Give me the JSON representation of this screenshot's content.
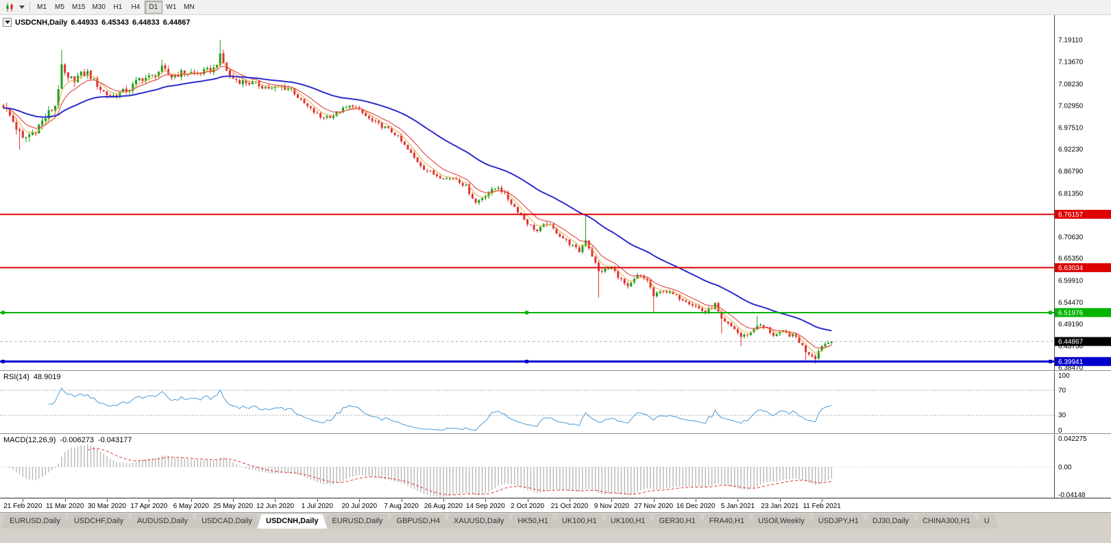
{
  "toolbar": {
    "chart_type_icon": "candlestick-chart-icon",
    "dropdown_icon": "chevron-down-icon",
    "timeframes": [
      "M1",
      "M5",
      "M15",
      "M30",
      "H1",
      "H4",
      "D1",
      "W1",
      "MN"
    ],
    "active_timeframe": "D1"
  },
  "chart_header": {
    "title": "USDCNH,Daily",
    "open": "6.44933",
    "high": "6.45343",
    "low": "6.44833",
    "close": "6.44867"
  },
  "rsi_panel": {
    "label": "RSI(14)",
    "value": "48.9019",
    "axis_labels": [
      [
        "100",
        100
      ],
      [
        "70",
        70
      ],
      [
        "30",
        30
      ],
      [
        "0",
        0
      ]
    ],
    "levels": [
      70,
      30
    ]
  },
  "macd_panel": {
    "label": "MACD(12,26,9)",
    "macd_value": "-0.006273",
    "signal_value": "-0.043177",
    "axis_top": "0.042275",
    "axis_zero": "0.00",
    "axis_bottom": "-0.04148"
  },
  "date_axis": {
    "first_candle_index": 6,
    "candle_step": 13,
    "labels": [
      "21 Feb 2020",
      "11 Mar 2020",
      "30 Mar 2020",
      "17 Apr 2020",
      "6 May 2020",
      "25 May 2020",
      "12 Jun 2020",
      "1 Jul 2020",
      "20 Jul 2020",
      "7 Aug 2020",
      "26 Aug 2020",
      "14 Sep 2020",
      "2 Oct 2020",
      "21 Oct 2020",
      "9 Nov 2020",
      "27 Nov 2020",
      "16 Dec 2020",
      "5 Jan 2021",
      "23 Jan 2021",
      "11 Feb 2021"
    ]
  },
  "bottom_tabs": {
    "active_index": 4,
    "tabs": [
      "EURUSD,Daily",
      "USDCHF,Daily",
      "AUDUSD,Daily",
      "USDCAD,Daily",
      "USDCNH,Daily",
      "EURUSD,Daily",
      "GBPUSD,H4",
      "XAUUSD,Daily",
      "HK50,H1",
      "UK100,H1",
      "UK100,H1",
      "GER30,H1",
      "FRA40,H1",
      "USOil,Weekly",
      "USDJPY,H1",
      "DJ30,Daily",
      "CHINA300,H1",
      "U"
    ]
  },
  "chart_data": {
    "type": "candlestick+indicators",
    "symbol": "USDCNH",
    "timeframe": "Daily",
    "price_range": [
      6.3847,
      7.1911
    ],
    "y_ticks": [
      "7.19110",
      "7.13670",
      "7.08230",
      "7.02950",
      "6.97510",
      "6.92230",
      "6.86790",
      "6.81350",
      "6.70630",
      "6.65350",
      "6.59910",
      "6.54470",
      "6.49190",
      "6.43750",
      "6.38470"
    ],
    "hlines": [
      {
        "price": 6.76157,
        "label": "6.76157",
        "color": "#dd0000",
        "width": 2,
        "handles": false
      },
      {
        "price": 6.63034,
        "label": "6.63034",
        "color": "#dd0000",
        "width": 2,
        "handles": false
      },
      {
        "price": 6.51976,
        "label": "6.51976",
        "color": "#00b400",
        "width": 2,
        "handles": true
      },
      {
        "price": 6.39941,
        "label": "6.39941",
        "color": "#0000cc",
        "width": 3,
        "handles": true
      }
    ],
    "current_price": {
      "value": 6.44867,
      "label": "6.44867",
      "box_color": "#000000",
      "line_color": "#b0b0b0"
    },
    "candle_colors": {
      "up": "#17a017",
      "down": "#e03232"
    },
    "candles": {
      "count": 257,
      "last_close": 6.44867,
      "anchors": [
        [
          0,
          7.03
        ],
        [
          3,
          6.99
        ],
        [
          6,
          6.945
        ],
        [
          10,
          6.97
        ],
        [
          13,
          7.0
        ],
        [
          16,
          7.03
        ],
        [
          18,
          7.12
        ],
        [
          20,
          7.09
        ],
        [
          23,
          7.1
        ],
        [
          26,
          7.11
        ],
        [
          30,
          7.07
        ],
        [
          33,
          7.05
        ],
        [
          36,
          7.06
        ],
        [
          39,
          7.07
        ],
        [
          42,
          7.095
        ],
        [
          46,
          7.1
        ],
        [
          49,
          7.12
        ],
        [
          52,
          7.1
        ],
        [
          55,
          7.11
        ],
        [
          58,
          7.11
        ],
        [
          61,
          7.11
        ],
        [
          65,
          7.12
        ],
        [
          67,
          7.15
        ],
        [
          70,
          7.1
        ],
        [
          73,
          7.09
        ],
        [
          76,
          7.085
        ],
        [
          79,
          7.08
        ],
        [
          83,
          7.07
        ],
        [
          86,
          7.075
        ],
        [
          89,
          7.07
        ],
        [
          92,
          7.04
        ],
        [
          95,
          7.02
        ],
        [
          98,
          7.0
        ],
        [
          102,
          7.005
        ],
        [
          105,
          7.02
        ],
        [
          108,
          7.03
        ],
        [
          111,
          7.01
        ],
        [
          114,
          6.99
        ],
        [
          118,
          6.975
        ],
        [
          121,
          6.96
        ],
        [
          124,
          6.93
        ],
        [
          127,
          6.9
        ],
        [
          130,
          6.875
        ],
        [
          133,
          6.86
        ],
        [
          137,
          6.85
        ],
        [
          140,
          6.85
        ],
        [
          143,
          6.83
        ],
        [
          146,
          6.79
        ],
        [
          149,
          6.81
        ],
        [
          153,
          6.83
        ],
        [
          156,
          6.8
        ],
        [
          159,
          6.77
        ],
        [
          162,
          6.74
        ],
        [
          165,
          6.72
        ],
        [
          168,
          6.74
        ],
        [
          172,
          6.71
        ],
        [
          175,
          6.69
        ],
        [
          178,
          6.67
        ],
        [
          180,
          6.7
        ],
        [
          182,
          6.66
        ],
        [
          184,
          6.62
        ],
        [
          188,
          6.63
        ],
        [
          191,
          6.6
        ],
        [
          193,
          6.58
        ],
        [
          196,
          6.61
        ],
        [
          199,
          6.6
        ],
        [
          201,
          6.56
        ],
        [
          204,
          6.575
        ],
        [
          208,
          6.56
        ],
        [
          211,
          6.55
        ],
        [
          214,
          6.535
        ],
        [
          217,
          6.52
        ],
        [
          220,
          6.54
        ],
        [
          222,
          6.5
        ],
        [
          226,
          6.48
        ],
        [
          228,
          6.46
        ],
        [
          231,
          6.47
        ],
        [
          233,
          6.49
        ],
        [
          236,
          6.48
        ],
        [
          238,
          6.465
        ],
        [
          241,
          6.47
        ],
        [
          245,
          6.46
        ],
        [
          248,
          6.425
        ],
        [
          251,
          6.41
        ],
        [
          253,
          6.44
        ],
        [
          256,
          6.449
        ]
      ],
      "wick_high": {
        "18": 7.166,
        "49": 7.142,
        "67": 7.191,
        "180": 6.757,
        "233": 6.512
      },
      "wick_low": {
        "5": 6.921,
        "184": 6.557,
        "201": 6.521,
        "222": 6.468,
        "228": 6.437,
        "248": 6.402,
        "251": 6.394
      }
    },
    "moving_averages": [
      {
        "period": 5,
        "color": "#e8a83c",
        "width": 1
      },
      {
        "period": 10,
        "color": "#e03232",
        "width": 1
      },
      {
        "period": 40,
        "color": "#2b2bcc",
        "width": 2
      }
    ],
    "rsi": {
      "period": 14,
      "color": "#4a9bd8",
      "last": 48.9019,
      "range": [
        0,
        100
      ]
    },
    "macd": {
      "fast": 12,
      "slow": 26,
      "signal": 9,
      "hist_color": "#b7b7b7",
      "signal_color": "#e03232",
      "range": [
        -0.04148,
        0.042275
      ]
    }
  }
}
